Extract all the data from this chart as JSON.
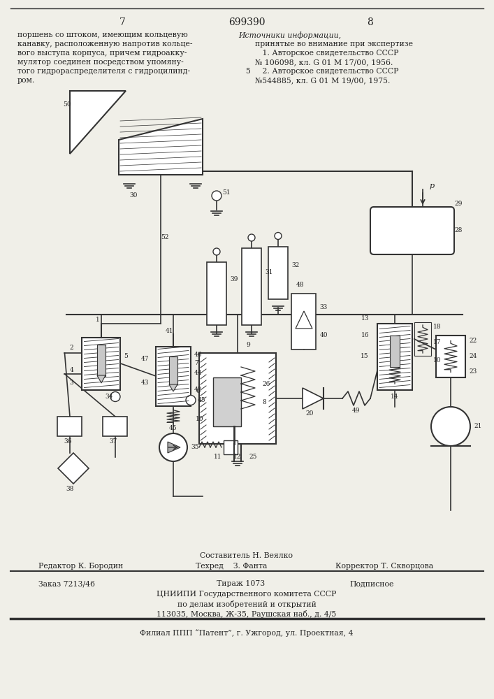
{
  "page_num_left": "7",
  "page_num_center": "699390",
  "page_num_right": "8",
  "left_text_lines": [
    "поршень со штоком, имеющим кольцевую",
    "канавку, расположенную напротив кольце-",
    "вого выступа корпуса, причем гидроакку-",
    "мулятор соединен посредством упомяну-",
    "того гидрораспределителя с гидроцилинд-",
    "ром."
  ],
  "right_text_title": "Источники информации,",
  "right_text_lines": [
    "принятые во внимание при экспертизе",
    "   1. Авторское свидетельство СССР",
    "№ 106098, кл. G 01 М 17/00, 1956.",
    "   2. Авторское свидетельство СССР",
    "№544885, кл. G 01 М 19/00, 1975."
  ],
  "ref_num_5": "5",
  "footer_composer": "Составитель Н. Веялко",
  "footer_editor": "Редактор К. Бородин",
  "footer_techred": "Техред    З. Фанта",
  "footer_corrector": "Корректор Т. Скворцова",
  "footer_order": "Заказ 7213/46",
  "footer_tirazh": "Тираж 1073",
  "footer_podpisnoe": "Подписное",
  "footer_org": "ЦНИИПИ Государственного комитета СССР",
  "footer_dept": "по делам изобретений и открытий",
  "footer_addr": "113035, Москва, Ж-35, Раушская наб., д. 4/5",
  "footer_patent": "Филиал ППП “Патент”, г. Ужгород, ул. Проектная, 4",
  "bg_color": "#f0efe8",
  "text_color": "#222222",
  "line_color": "#333333"
}
